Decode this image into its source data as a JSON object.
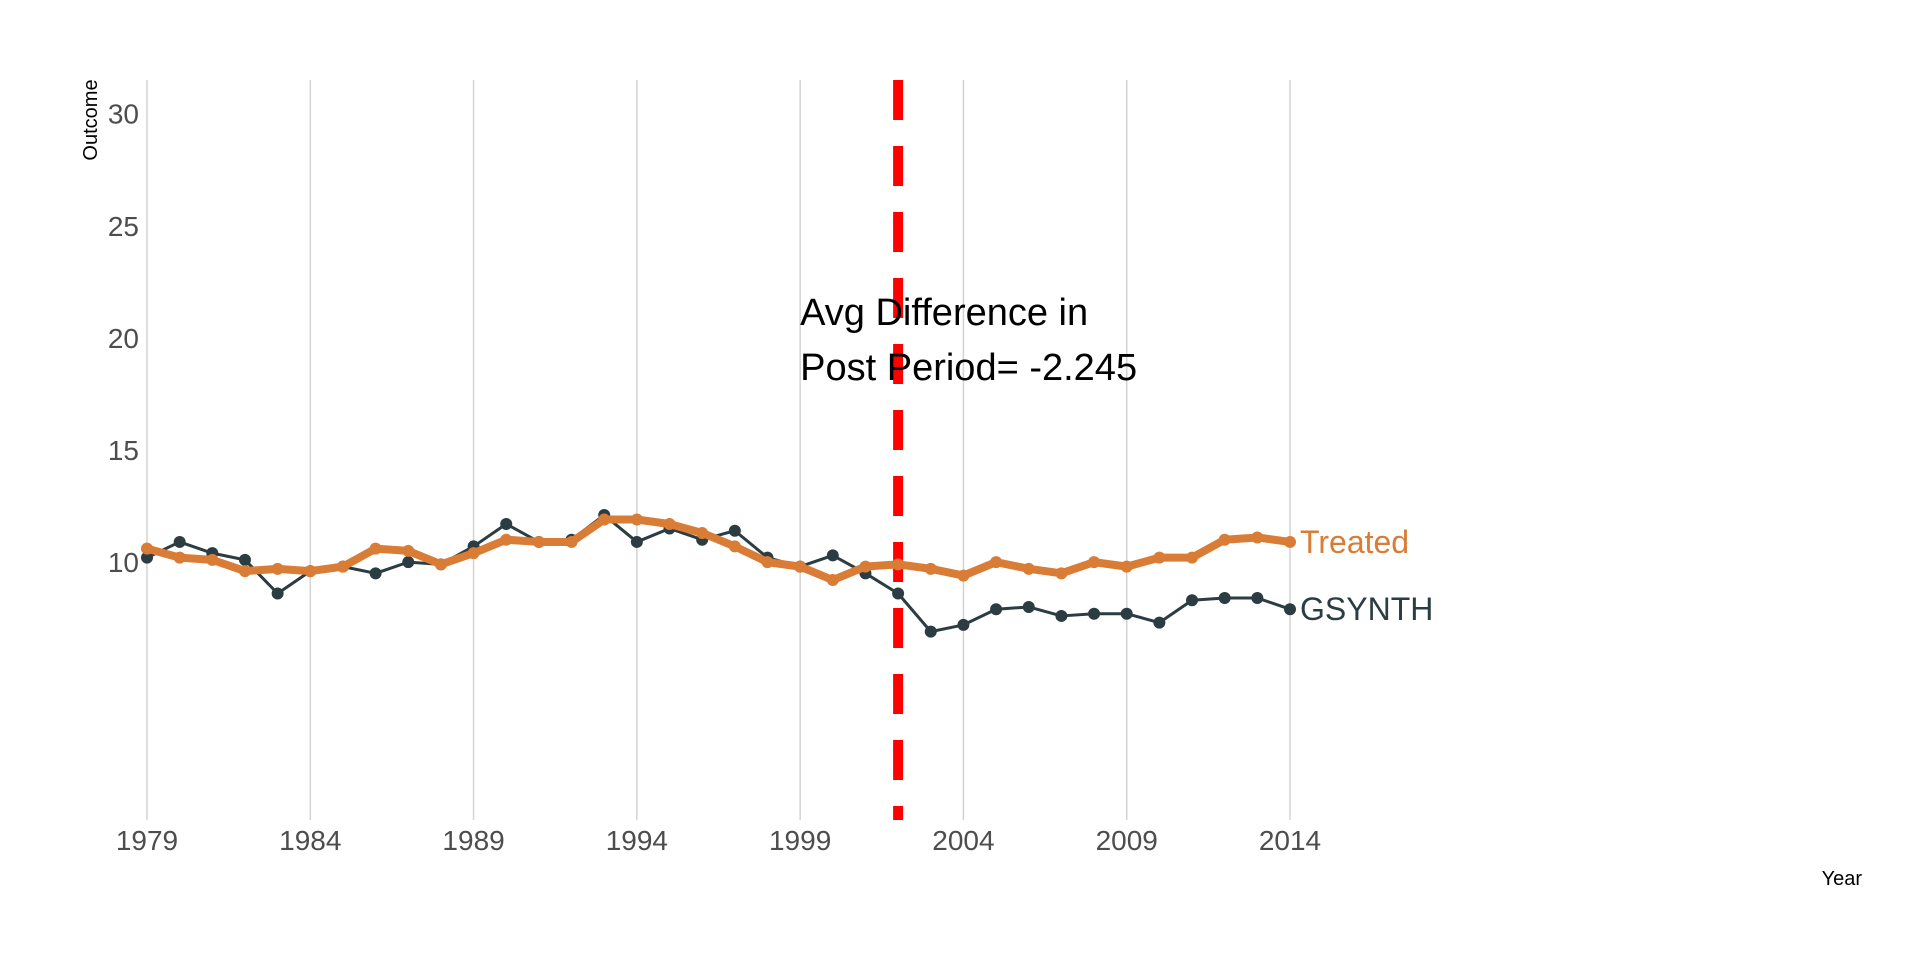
{
  "chart_data": {
    "type": "line",
    "xlabel": "Year",
    "ylabel": "Outcome",
    "xlim": [
      1979,
      2014
    ],
    "ylim": [
      -1.5,
      31.5
    ],
    "x_ticks": [
      1979,
      1984,
      1989,
      1994,
      1999,
      2004,
      2009,
      2014
    ],
    "y_ticks": [
      10,
      15,
      20,
      25,
      30
    ],
    "grid": "vertical",
    "treatment_year": 2002,
    "treatment_line_color": "#ff0000",
    "annotation": [
      "Avg Difference in",
      "Post Period= -2.245"
    ],
    "x": [
      1979,
      1980,
      1981,
      1982,
      1983,
      1984,
      1985,
      1986,
      1987,
      1988,
      1989,
      1990,
      1991,
      1992,
      1993,
      1994,
      1995,
      1996,
      1997,
      1998,
      1999,
      2000,
      2001,
      2002,
      2003,
      2004,
      2005,
      2006,
      2007,
      2008,
      2009,
      2010,
      2011,
      2012,
      2013,
      2014
    ],
    "series": [
      {
        "name": "Treated",
        "color": "#d97c36",
        "values": [
          10.6,
          10.2,
          10.1,
          9.6,
          9.7,
          9.6,
          9.8,
          10.6,
          10.5,
          9.9,
          10.4,
          11.0,
          10.9,
          10.9,
          11.9,
          11.9,
          11.7,
          11.3,
          10.7,
          10.0,
          9.8,
          9.2,
          9.8,
          9.9,
          9.7,
          9.4,
          10.0,
          9.7,
          9.5,
          10.0,
          9.8,
          10.2,
          10.2,
          11.0,
          11.1,
          10.9
        ]
      },
      {
        "name": "GSYNTH",
        "color": "#2b3c42",
        "values": [
          10.2,
          10.9,
          10.4,
          10.1,
          8.6,
          9.6,
          9.8,
          9.5,
          10.0,
          9.9,
          10.7,
          11.7,
          10.9,
          11.0,
          12.1,
          10.9,
          11.5,
          11.0,
          11.4,
          10.2,
          9.8,
          10.3,
          9.5,
          8.6,
          6.9,
          7.2,
          7.9,
          8.0,
          7.6,
          7.7,
          7.7,
          7.3,
          8.3,
          8.4,
          8.4,
          7.9
        ]
      }
    ]
  }
}
